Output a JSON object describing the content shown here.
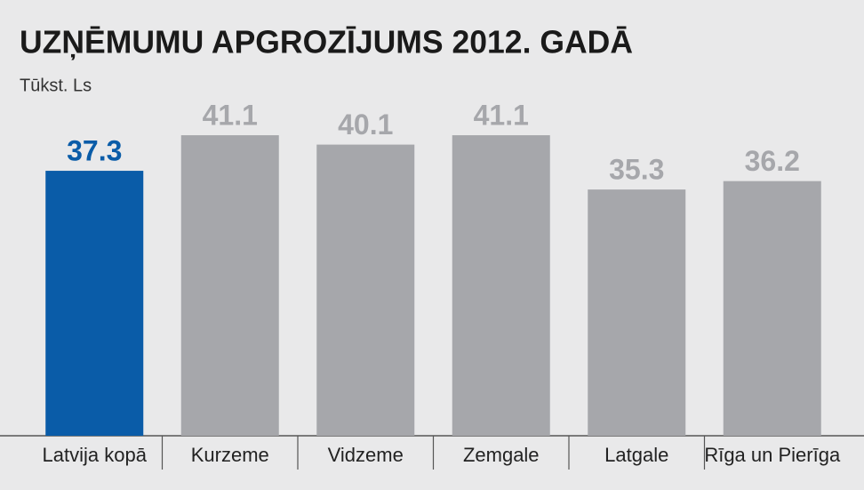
{
  "chart_data": {
    "type": "bar",
    "title": "UZŅĒMUMU APGROZĪJUMS 2012. GADĀ",
    "subtitle": "Tūkst. Ls",
    "categories": [
      "Latvija kopā",
      "Kurzeme",
      "Vidzeme",
      "Zemgale",
      "Latgale",
      "Rīga un Pierīga"
    ],
    "values": [
      37.3,
      41.1,
      40.1,
      41.1,
      35.3,
      36.2
    ],
    "colors": [
      "#0a5ca8",
      "#a6a7ab",
      "#a6a7ab",
      "#a6a7ab",
      "#a6a7ab",
      "#a6a7ab"
    ],
    "ylim": [
      9,
      45
    ]
  }
}
